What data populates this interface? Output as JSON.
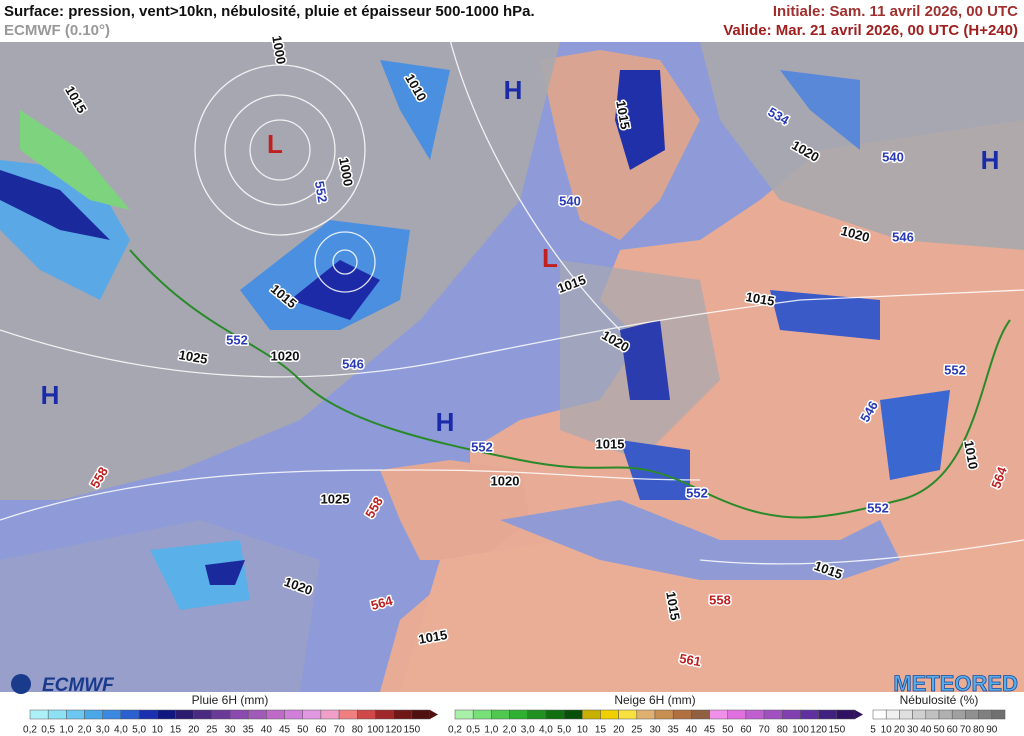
{
  "header": {
    "title": "Surface: pression, vent>10kn, nébulosité, pluie et épaisseur 500-1000 hPa.",
    "model": "ECMWF (0.10°)",
    "initial": "Initiale: Sam. 11 avril 2026, 00 UTC",
    "valid": "Valide: Mar. 21 avril 2026, 00 UTC (H+240)"
  },
  "map": {
    "contour_labels": [
      "1015",
      "1000",
      "1010",
      "1015",
      "1000",
      "552",
      "534",
      "1020",
      "540",
      "540",
      "1020",
      "546",
      "1015",
      "1015",
      "1015",
      "1020",
      "552",
      "1020",
      "546",
      "1025",
      "552",
      "546",
      "1015",
      "552",
      "558",
      "1020",
      "1010",
      "564",
      "552",
      "1025",
      "558",
      "552",
      "1020",
      "564",
      "1015",
      "1015",
      "558",
      "1015",
      "561"
    ],
    "centers": [
      "H",
      "L",
      "H",
      "L",
      "H",
      "H"
    ]
  },
  "logos": {
    "left": "ECMWF",
    "right": "METEORED"
  },
  "legend": {
    "rain": {
      "title": "Pluie 6H (mm)",
      "ticks": [
        "0,2",
        "0,5",
        "1,0",
        "2,0",
        "3,0",
        "4,0",
        "5,0",
        "10",
        "15",
        "20",
        "25",
        "30",
        "35",
        "40",
        "45",
        "50",
        "60",
        "70",
        "80",
        "100",
        "120",
        "150"
      ]
    },
    "snow": {
      "title": "Neige 6H (mm)",
      "ticks": [
        "0,2",
        "0,5",
        "1,0",
        "2,0",
        "3,0",
        "4,0",
        "5,0",
        "10",
        "15",
        "20",
        "25",
        "30",
        "35",
        "40",
        "45",
        "50",
        "60",
        "70",
        "80",
        "100",
        "120",
        "150"
      ]
    },
    "cloud": {
      "title": "Nébulosité (%)",
      "ticks": [
        "5",
        "10",
        "20",
        "30",
        "40",
        "50",
        "60",
        "70",
        "80",
        "90"
      ]
    }
  }
}
